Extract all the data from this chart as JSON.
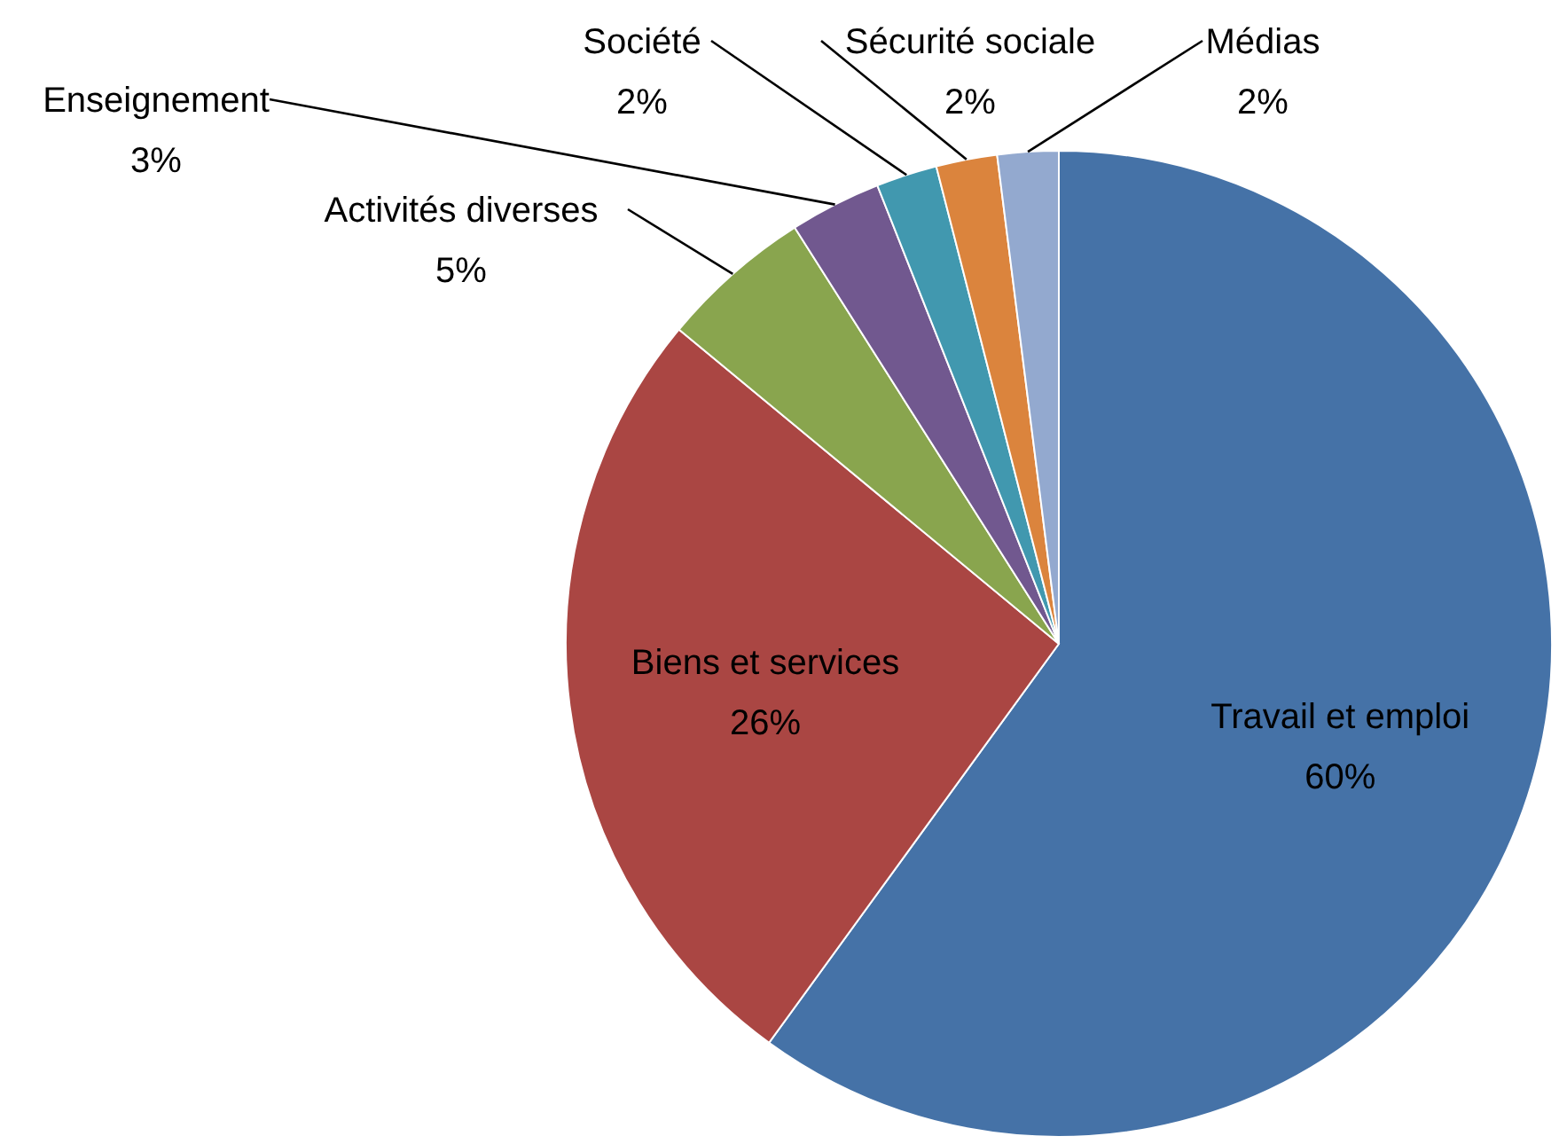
{
  "chart_data": {
    "type": "pie",
    "categories": [
      "Travail et emploi",
      "Biens et services",
      "Activités diverses",
      "Enseignement",
      "Société",
      "Sécurité sociale",
      "Médias"
    ],
    "values": [
      60,
      26,
      5,
      3,
      2,
      2,
      2
    ],
    "value_labels": [
      "60%",
      "26%",
      "5%",
      "3%",
      "2%",
      "2%",
      "2%"
    ],
    "colors": [
      "#4572a7",
      "#aa4643",
      "#89a54e",
      "#71588f",
      "#4198af",
      "#db843d",
      "#93a9cf"
    ],
    "legend": false
  }
}
